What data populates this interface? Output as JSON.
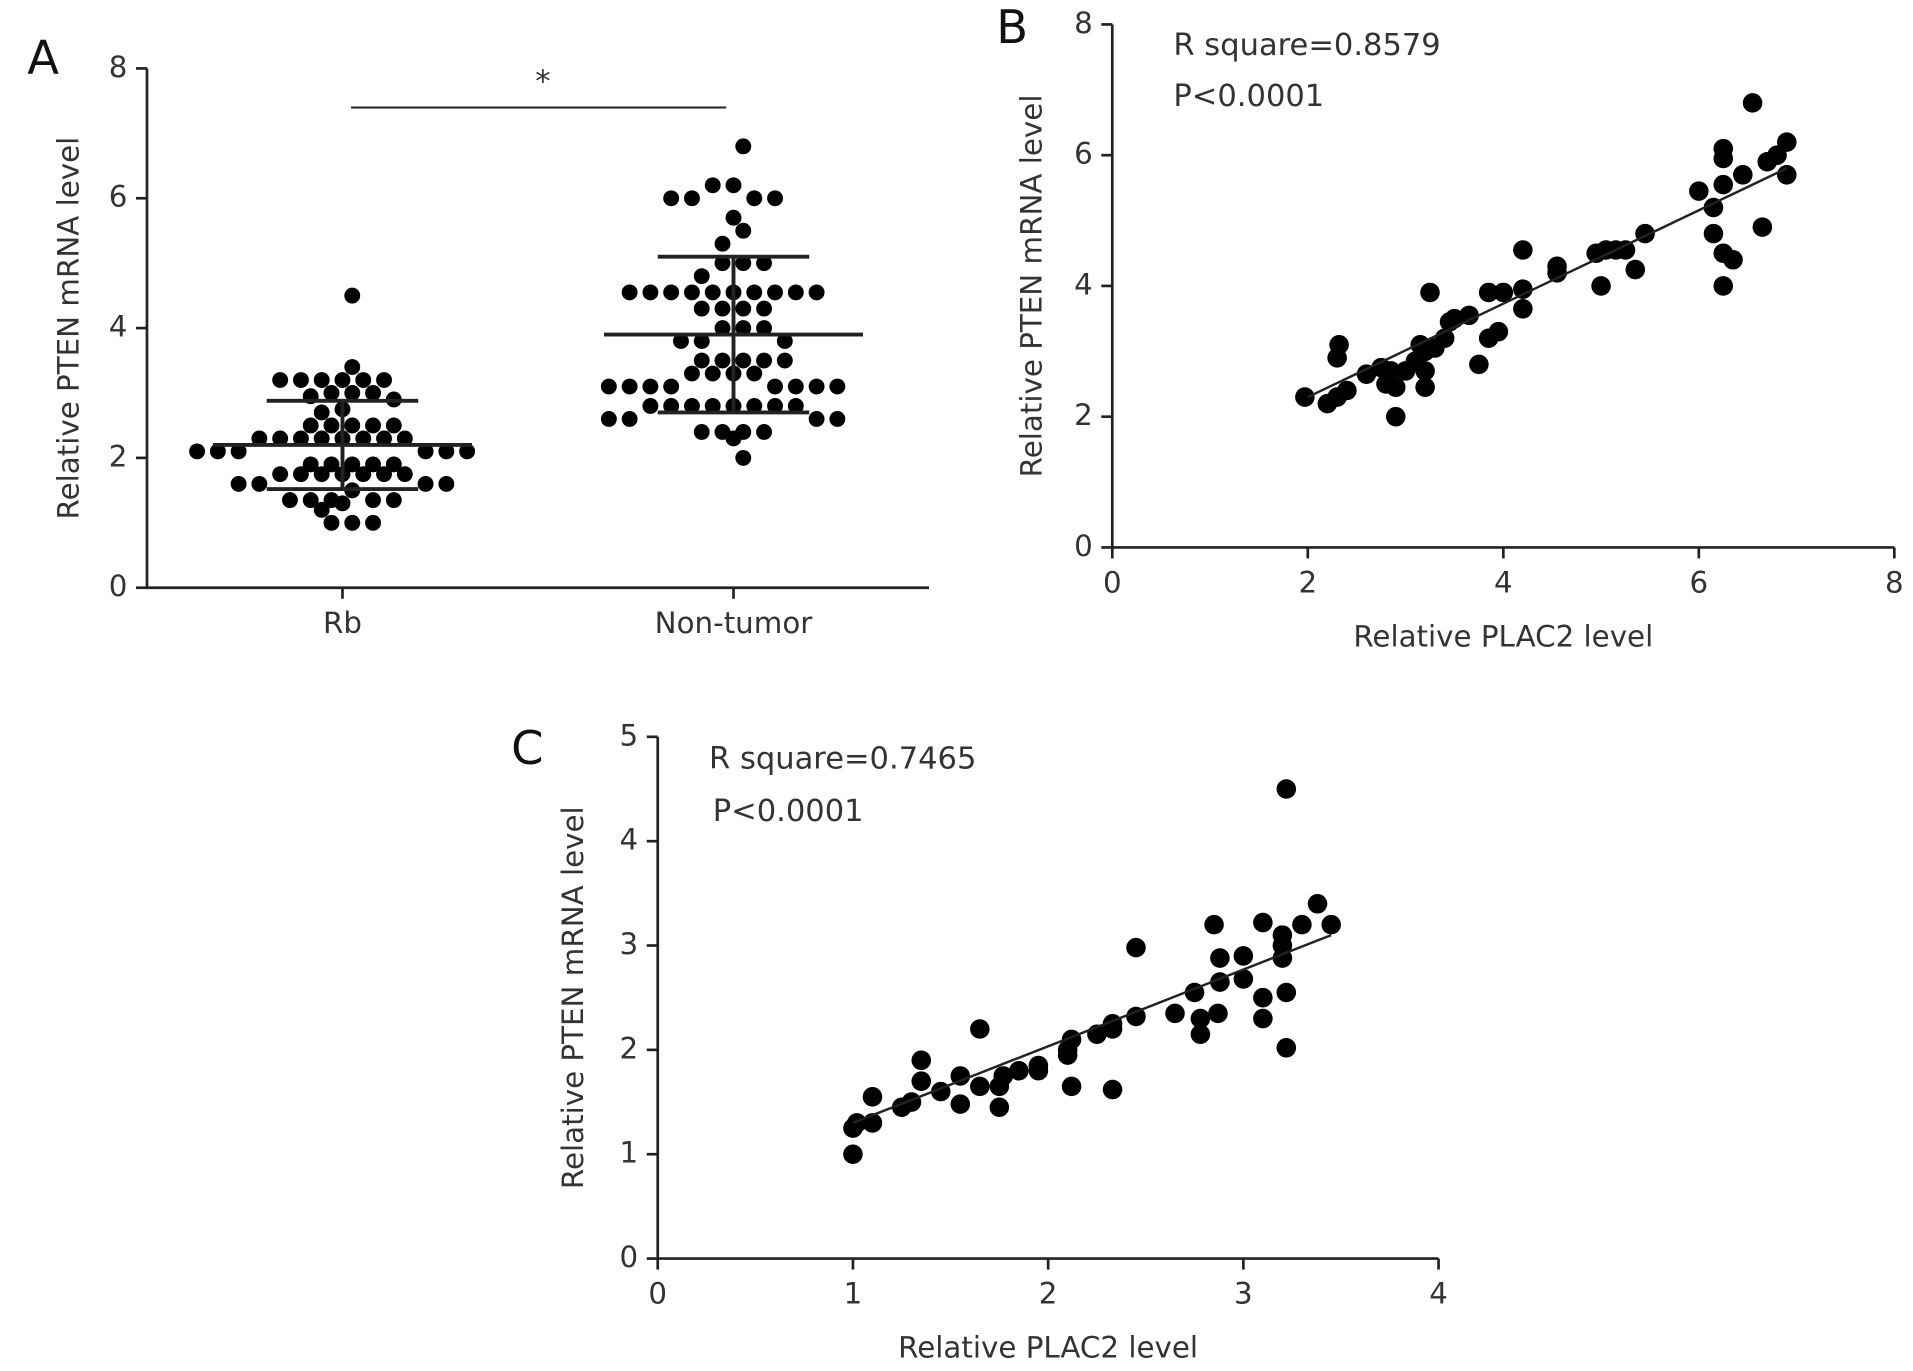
{
  "chart_data": [
    {
      "type": "dot-plot",
      "panel_label": "A",
      "y_label": "Relative PTEN mRNA level",
      "categories": [
        "Rb",
        "Non-tumor"
      ],
      "series": [
        {
          "color": "#000000",
          "values": [
            [
              4.5,
              3.4,
              3.2,
              3.2,
              3.2,
              3.2,
              3.2,
              3.2,
              3.0,
              3.0,
              3.0,
              2.95,
              2.9,
              2.75,
              2.7,
              2.5,
              2.5,
              2.5,
              2.5,
              2.5,
              2.3,
              2.3,
              2.3,
              2.3,
              2.3,
              2.3,
              2.3,
              2.3,
              2.1,
              2.1,
              2.1,
              2.1,
              2.1,
              2.1,
              1.9,
              1.9,
              1.9,
              1.9,
              1.9,
              1.75,
              1.75,
              1.75,
              1.75,
              1.75,
              1.75,
              1.75,
              1.6,
              1.6,
              1.6,
              1.6,
              1.5,
              1.35,
              1.35,
              1.35,
              1.35,
              1.35,
              1.3,
              1.2,
              1.0,
              1.0,
              1.0
            ],
            [
              6.8,
              6.2,
              6.2,
              6.0,
              6.0,
              6.0,
              6.0,
              5.7,
              5.5,
              5.3,
              5.0,
              5.0,
              5.0,
              4.8,
              4.55,
              4.55,
              4.55,
              4.55,
              4.55,
              4.55,
              4.55,
              4.55,
              4.55,
              4.55,
              4.3,
              4.3,
              4.3,
              4.3,
              4.0,
              4.0,
              4.0,
              3.8,
              3.8,
              3.8,
              3.5,
              3.5,
              3.5,
              3.5,
              3.5,
              3.3,
              3.3,
              3.3,
              3.3,
              3.1,
              3.1,
              3.1,
              3.1,
              3.1,
              3.1,
              3.1,
              3.1,
              2.8,
              2.8,
              2.8,
              2.8,
              2.8,
              2.8,
              2.8,
              2.8,
              2.6,
              2.6,
              2.6,
              2.6,
              2.4,
              2.4,
              2.4,
              2.4,
              2.3,
              2.0
            ]
          ]
        }
      ],
      "mean": [
        2.2,
        3.9
      ],
      "sd": [
        0.68,
        1.2
      ],
      "annotations": [
        "*"
      ],
      "ylim": [
        0,
        8
      ],
      "yticks": [
        0,
        2,
        4,
        6,
        8
      ]
    },
    {
      "type": "scatter",
      "panel_label": "B",
      "x_label": "Relative PLAC2 level",
      "y_label": "Relative PTEN mRNA level",
      "annotations": [
        "R square=0.8579",
        "P<0.0001"
      ],
      "series": [
        {
          "color": "#000000",
          "x": [
            1.97,
            2.2,
            2.3,
            2.3,
            2.32,
            2.4,
            2.6,
            2.75,
            2.8,
            2.85,
            2.9,
            2.9,
            3.0,
            3.1,
            3.15,
            3.2,
            3.2,
            3.2,
            3.25,
            3.3,
            3.4,
            3.45,
            3.5,
            3.65,
            3.75,
            3.85,
            3.85,
            3.95,
            4.0,
            4.2,
            4.2,
            4.2,
            4.55,
            4.55,
            4.95,
            5.0,
            5.05,
            5.15,
            5.25,
            5.35,
            5.45,
            6.0,
            6.15,
            6.15,
            6.25,
            6.25,
            6.25,
            6.25,
            6.25,
            6.35,
            6.45,
            6.55,
            6.65,
            6.7,
            6.8,
            6.9,
            6.9
          ],
          "y": [
            2.3,
            2.2,
            2.3,
            2.9,
            3.1,
            2.4,
            2.65,
            2.75,
            2.5,
            2.7,
            2.45,
            2.0,
            2.7,
            2.85,
            3.1,
            2.45,
            2.7,
            3.0,
            3.9,
            3.05,
            3.2,
            3.45,
            3.5,
            3.55,
            2.8,
            3.9,
            3.2,
            3.3,
            3.9,
            4.55,
            3.65,
            3.95,
            4.3,
            4.2,
            4.5,
            4.0,
            4.55,
            4.55,
            4.55,
            4.25,
            4.8,
            5.45,
            5.2,
            4.8,
            5.55,
            6.1,
            5.95,
            4.5,
            4.0,
            4.4,
            5.7,
            6.8,
            4.9,
            5.9,
            6.0,
            6.2,
            5.7
          ]
        }
      ],
      "fit": {
        "x": [
          2.0,
          6.9
        ],
        "y": [
          2.3,
          5.8
        ]
      },
      "xlim": [
        0,
        8
      ],
      "xticks": [
        0,
        2,
        4,
        6,
        8
      ],
      "ylim": [
        0,
        8
      ],
      "yticks": [
        0,
        2,
        4,
        6,
        8
      ]
    },
    {
      "type": "scatter",
      "panel_label": "C",
      "x_label": "Relative PLAC2 level",
      "y_label": "Relative PTEN mRNA level",
      "annotations": [
        "R square=0.7465",
        "P<0.0001"
      ],
      "series": [
        {
          "color": "#000000",
          "x": [
            1.0,
            1.0,
            1.02,
            1.1,
            1.1,
            1.25,
            1.3,
            1.35,
            1.35,
            1.45,
            1.55,
            1.55,
            1.65,
            1.65,
            1.75,
            1.75,
            1.77,
            1.85,
            1.95,
            1.95,
            2.1,
            2.1,
            2.12,
            2.12,
            2.25,
            2.33,
            2.33,
            2.33,
            2.45,
            2.45,
            2.65,
            2.75,
            2.78,
            2.78,
            2.85,
            2.87,
            2.88,
            2.88,
            3.0,
            3.0,
            3.1,
            3.1,
            3.1,
            3.2,
            3.2,
            3.2,
            3.22,
            3.22,
            3.22,
            3.3,
            3.38,
            3.45
          ],
          "y": [
            1.0,
            1.25,
            1.3,
            1.55,
            1.3,
            1.45,
            1.5,
            1.9,
            1.7,
            1.6,
            1.75,
            1.48,
            2.2,
            1.65,
            1.65,
            1.45,
            1.75,
            1.8,
            1.8,
            1.85,
            2.0,
            1.95,
            2.1,
            1.65,
            2.15,
            2.25,
            2.2,
            1.62,
            2.32,
            2.98,
            2.35,
            2.55,
            2.15,
            2.3,
            3.2,
            2.35,
            2.65,
            2.88,
            2.68,
            2.9,
            2.3,
            2.5,
            3.22,
            2.88,
            3.0,
            3.1,
            2.02,
            2.55,
            4.5,
            3.2,
            3.4,
            3.2
          ]
        }
      ],
      "fit": {
        "x": [
          1.0,
          3.45
        ],
        "y": [
          1.3,
          3.1
        ]
      },
      "xlim": [
        0,
        4
      ],
      "xticks": [
        0,
        1,
        2,
        3,
        4
      ],
      "ylim": [
        0,
        5
      ],
      "yticks": [
        0,
        1,
        2,
        3,
        4,
        5
      ]
    }
  ]
}
